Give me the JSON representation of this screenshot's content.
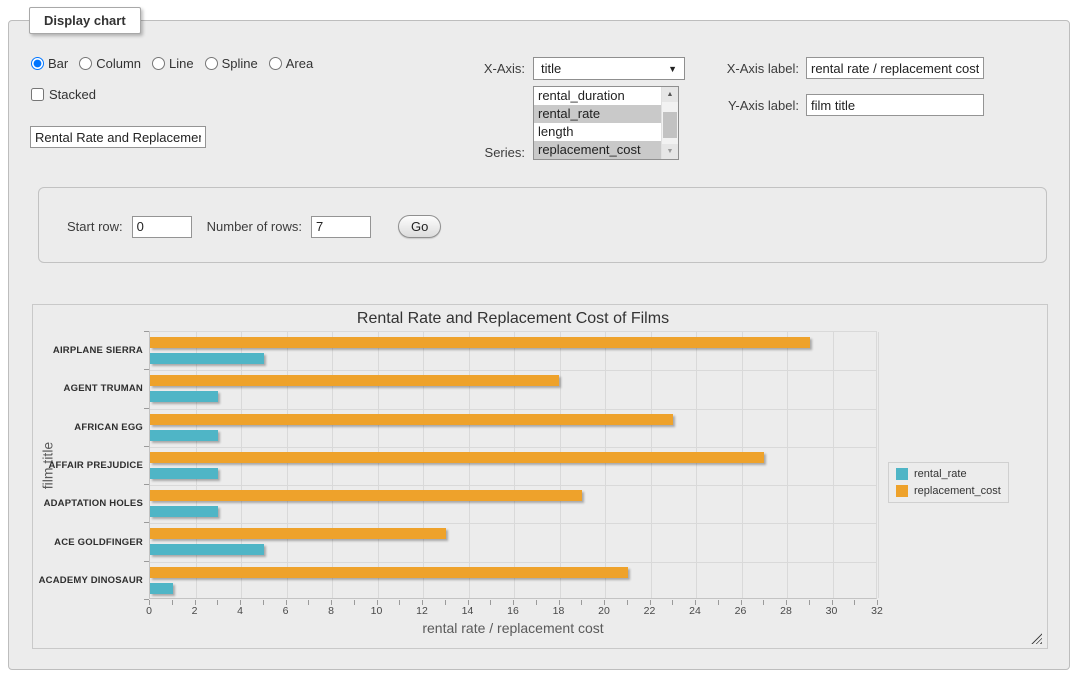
{
  "window": {
    "legend": "Display chart"
  },
  "controls": {
    "chart_types": [
      {
        "label": "Bar",
        "selected": true
      },
      {
        "label": "Column",
        "selected": false
      },
      {
        "label": "Line",
        "selected": false
      },
      {
        "label": "Spline",
        "selected": false
      },
      {
        "label": "Area",
        "selected": false
      }
    ],
    "stacked_label": "Stacked",
    "stacked_checked": false,
    "chart_title_value": "Rental Rate and Replacement Cost of Films",
    "x_axis_label_text": "X-Axis:",
    "x_axis_selected": "title",
    "series_label_text": "Series:",
    "series_options": [
      {
        "label": "rental_duration",
        "selected": false
      },
      {
        "label": "rental_rate",
        "selected": true
      },
      {
        "label": "length",
        "selected": false
      },
      {
        "label": "replacement_cost",
        "selected": true
      }
    ],
    "x_axis_title_label": "X-Axis label:",
    "x_axis_title_value": "rental rate / replacement cost",
    "y_axis_title_label": "Y-Axis label:",
    "y_axis_title_value": "film title"
  },
  "rows_panel": {
    "start_row_label": "Start row:",
    "start_row_value": "0",
    "num_rows_label": "Number of rows:",
    "num_rows_value": "7",
    "go_label": "Go"
  },
  "chart_data": {
    "type": "bar",
    "title": "Rental Rate and Replacement Cost of Films",
    "xlabel": "rental rate / replacement cost",
    "ylabel": "film title",
    "categories": [
      "AIRPLANE SIERRA",
      "AGENT TRUMAN",
      "AFRICAN EGG",
      "AFFAIR PREJUDICE",
      "ADAPTATION HOLES",
      "ACE GOLDFINGER",
      "ACADEMY DINOSAUR"
    ],
    "series": [
      {
        "name": "rental_rate",
        "color": "#4FB5C6",
        "values": [
          4.99,
          2.99,
          2.99,
          2.99,
          2.99,
          4.99,
          0.99
        ]
      },
      {
        "name": "replacement_cost",
        "color": "#EEA22B",
        "values": [
          28.99,
          17.99,
          22.99,
          26.99,
          18.99,
          12.99,
          20.99
        ]
      }
    ],
    "bar_order_top_to_bottom": [
      "replacement_cost",
      "rental_rate"
    ],
    "xlim": [
      0,
      32
    ],
    "x_ticks": [
      0,
      2,
      4,
      6,
      8,
      10,
      12,
      14,
      16,
      18,
      20,
      22,
      24,
      26,
      28,
      30,
      32
    ],
    "minor_tick_step": 1,
    "grid": true,
    "legend_position": "right"
  }
}
